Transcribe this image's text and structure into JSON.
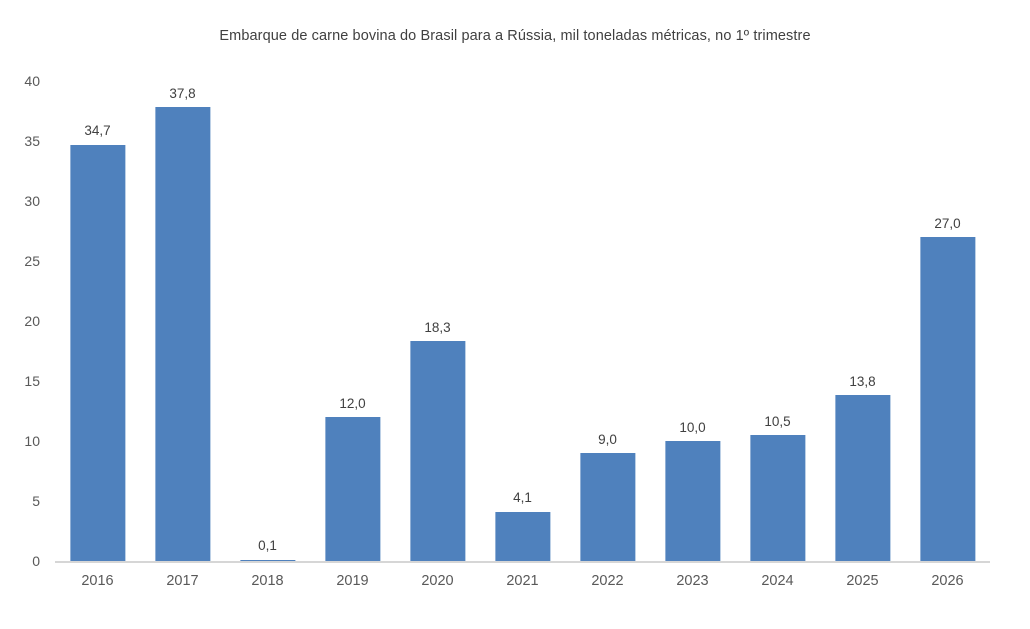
{
  "chart_data": {
    "type": "bar",
    "title": "Embarque de carne bovina do Brasil para a Rússia, mil toneladas métricas, no 1º trimestre",
    "categories": [
      "2016",
      "2017",
      "2018",
      "2019",
      "2020",
      "2021",
      "2022",
      "2023",
      "2024",
      "2025",
      "2026"
    ],
    "values": [
      34.7,
      37.8,
      0.1,
      12.0,
      18.3,
      4.1,
      9.0,
      10.0,
      10.5,
      13.8,
      27.0
    ],
    "value_labels": [
      "34,7",
      "37,8",
      "0,1",
      "12,0",
      "18,3",
      "4,1",
      "9,0",
      "10,0",
      "10,5",
      "13,8",
      "27,0"
    ],
    "xlabel": "",
    "ylabel": "",
    "ylim": [
      0,
      40
    ],
    "y_ticks": [
      0,
      5,
      10,
      15,
      20,
      25,
      30,
      35,
      40
    ],
    "grid": false,
    "legend": "none",
    "bar_color": "#4f81bd",
    "axis_line_color": "#d6d6d6",
    "title_color": "#404040",
    "tick_label_color": "#595959"
  }
}
